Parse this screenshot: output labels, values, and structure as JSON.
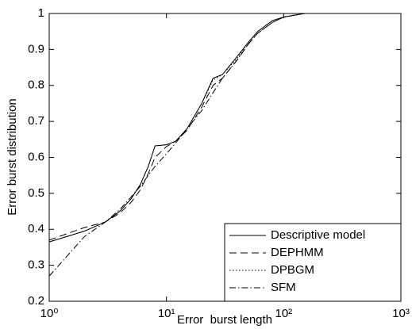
{
  "chart_data": {
    "type": "line",
    "x_label": "Error  burst length",
    "y_label": "Error burst distribution",
    "x": [
      1,
      2,
      3,
      4,
      5,
      6,
      7,
      8,
      10,
      12,
      15,
      20,
      25,
      30,
      40,
      50,
      60,
      80,
      100,
      150,
      200
    ],
    "series": [
      {
        "name": "Descriptive model",
        "color": "#000000",
        "style": "solid",
        "values": [
          0.365,
          0.395,
          0.42,
          0.45,
          0.485,
          0.525,
          0.575,
          0.632,
          0.635,
          0.645,
          0.68,
          0.75,
          0.82,
          0.83,
          0.88,
          0.92,
          0.95,
          0.98,
          0.99,
          1.0,
          1.0
        ]
      },
      {
        "name": "DEPHMM",
        "color": "#000000",
        "style": "dashed",
        "values": [
          0.37,
          0.405,
          0.42,
          0.445,
          0.475,
          0.51,
          0.555,
          0.6,
          0.63,
          0.645,
          0.675,
          0.74,
          0.8,
          0.82,
          0.87,
          0.915,
          0.945,
          0.975,
          0.99,
          1.0,
          1.0
        ]
      },
      {
        "name": "DPBGM",
        "color": "#000000",
        "style": "dotted",
        "values": [
          0.365,
          0.395,
          0.42,
          0.45,
          0.485,
          0.525,
          0.575,
          0.632,
          0.635,
          0.645,
          0.68,
          0.75,
          0.815,
          0.83,
          0.875,
          0.92,
          0.95,
          0.98,
          0.99,
          1.0,
          1.0
        ]
      },
      {
        "name": "SFM",
        "color": "#000000",
        "style": "dashdot",
        "values": [
          0.27,
          0.38,
          0.42,
          0.455,
          0.49,
          0.52,
          0.55,
          0.575,
          0.61,
          0.64,
          0.68,
          0.73,
          0.78,
          0.82,
          0.87,
          0.915,
          0.945,
          0.975,
          0.99,
          1.0,
          1.0
        ]
      }
    ],
    "xscale": "log",
    "xlim": [
      1,
      1000
    ],
    "xticks": [
      {
        "value": 1,
        "label": "10⁰"
      },
      {
        "value": 10,
        "label": "10¹"
      },
      {
        "value": 100,
        "label": "10²"
      },
      {
        "value": 1000,
        "label": "10³"
      }
    ],
    "ylim": [
      0.2,
      1
    ],
    "yticks": [
      0.2,
      0.3,
      0.4,
      0.5,
      0.6,
      0.7,
      0.8,
      0.9,
      1
    ],
    "grid": false,
    "legend": "lower right"
  }
}
